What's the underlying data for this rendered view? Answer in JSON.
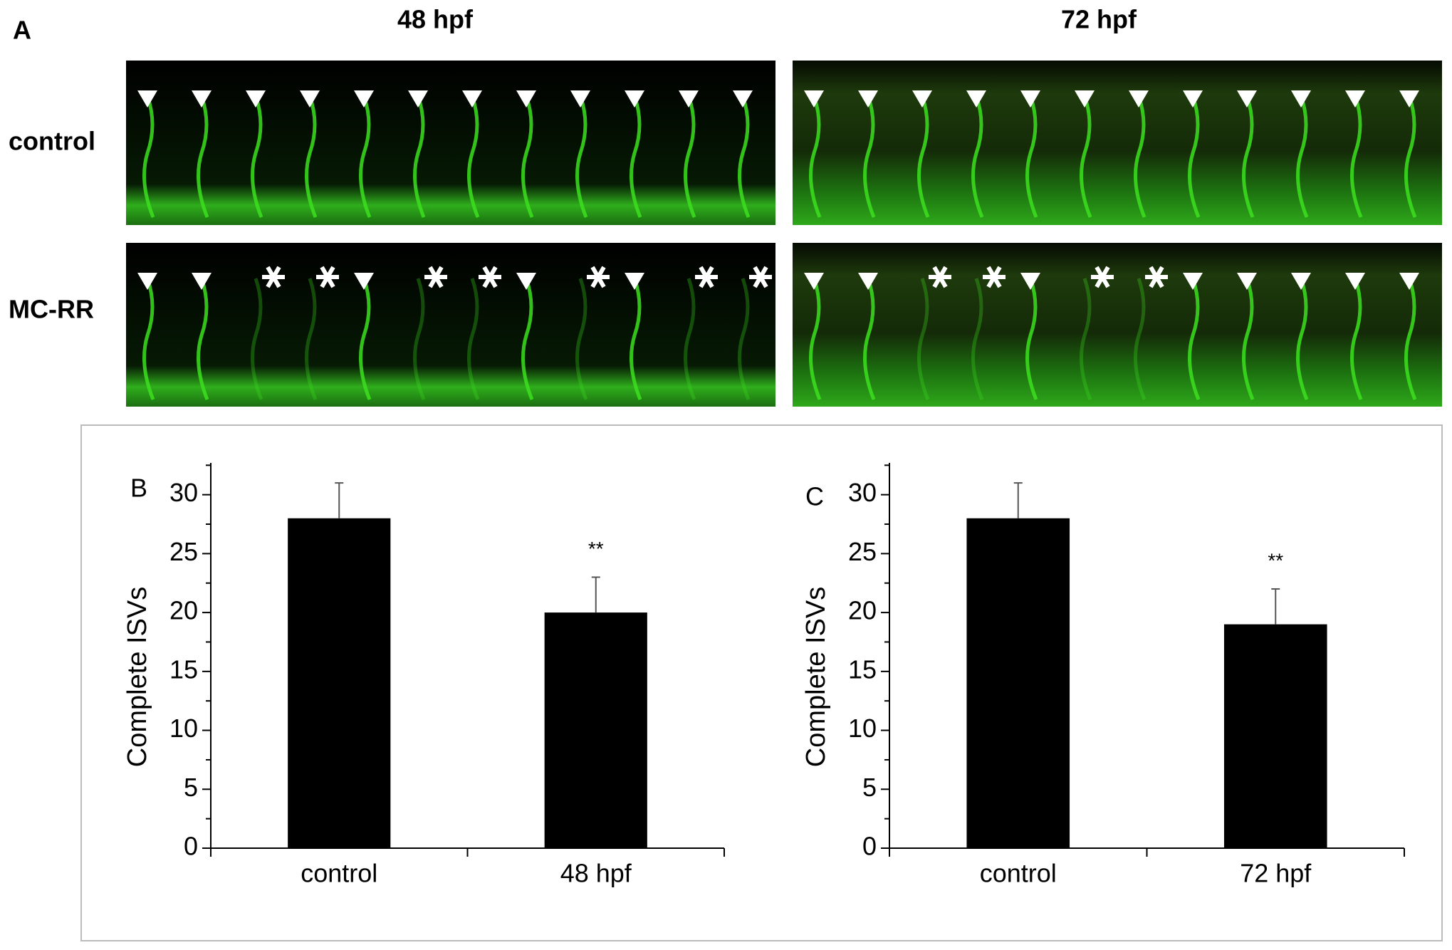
{
  "figure": {
    "panel_label": "A",
    "columns": [
      "48 hpf",
      "72 hpf"
    ],
    "rows": [
      "control",
      "MC-RR"
    ]
  },
  "chart_data": [
    {
      "type": "bar",
      "panel_label": "B",
      "y_label": "Complete ISVs",
      "categories": [
        "control",
        "48 hpf"
      ],
      "values": [
        28,
        20
      ],
      "errors": [
        3,
        3
      ],
      "value_labels": [
        "",
        "**"
      ],
      "color": "#000000",
      "ylim": [
        0,
        32.7
      ],
      "yticks": [
        0,
        5,
        10,
        15,
        20,
        25,
        30
      ],
      "yminor_ticks": [
        2.5,
        7.5,
        12.5,
        17.5,
        22.5,
        27.5,
        32.5
      ]
    },
    {
      "type": "bar",
      "panel_label": "C",
      "y_label": "Complete ISVs",
      "categories": [
        "control",
        "72 hpf"
      ],
      "values": [
        28,
        19
      ],
      "errors": [
        3,
        3
      ],
      "value_labels": [
        "",
        "**"
      ],
      "color": "#000000",
      "ylim": [
        0,
        32.7
      ],
      "yticks": [
        0,
        5,
        10,
        15,
        20,
        25,
        30
      ],
      "yminor_ticks": [
        2.5,
        7.5,
        12.5,
        17.5,
        22.5,
        27.5,
        32.5
      ]
    }
  ]
}
